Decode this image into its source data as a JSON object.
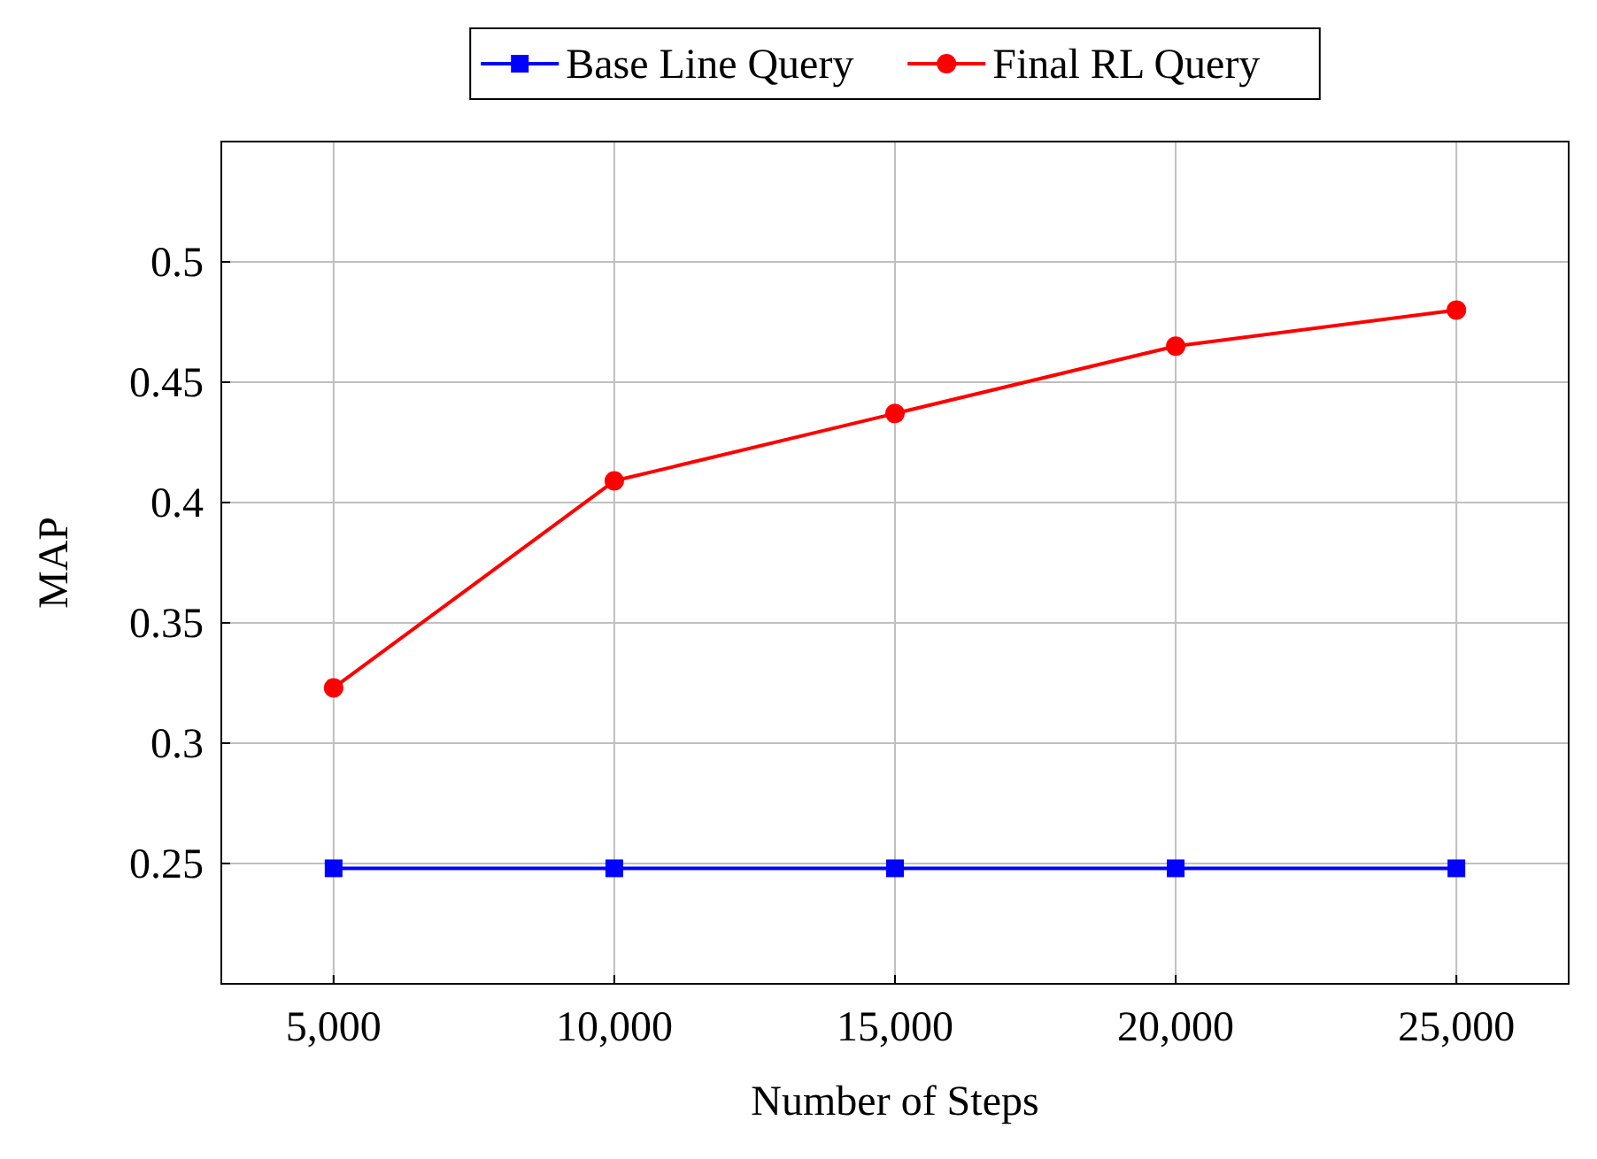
{
  "chart_data": {
    "type": "line",
    "xlabel": "Number of Steps",
    "ylabel": "MAP",
    "x": [
      5000,
      10000,
      15000,
      20000,
      25000
    ],
    "series": [
      {
        "name": "Base Line Query",
        "color": "#0000ff",
        "marker": "square",
        "values": [
          0.248,
          0.248,
          0.248,
          0.248,
          0.248
        ]
      },
      {
        "name": "Final RL Query",
        "color": "#ff0000",
        "marker": "circle",
        "values": [
          0.323,
          0.409,
          0.437,
          0.465,
          0.48
        ]
      }
    ],
    "xlim": [
      3000,
      27000
    ],
    "xticks": [
      {
        "value": 5000,
        "label": "5,000"
      },
      {
        "value": 10000,
        "label": "10,000"
      },
      {
        "value": 15000,
        "label": "15,000"
      },
      {
        "value": 20000,
        "label": "20,000"
      },
      {
        "value": 25000,
        "label": "25,000"
      }
    ],
    "ylim": [
      0.2,
      0.55
    ],
    "yticks": [
      0.25,
      0.3,
      0.35,
      0.4,
      0.45,
      0.5
    ],
    "grid": true,
    "legend": "top",
    "line_style": "solid"
  }
}
